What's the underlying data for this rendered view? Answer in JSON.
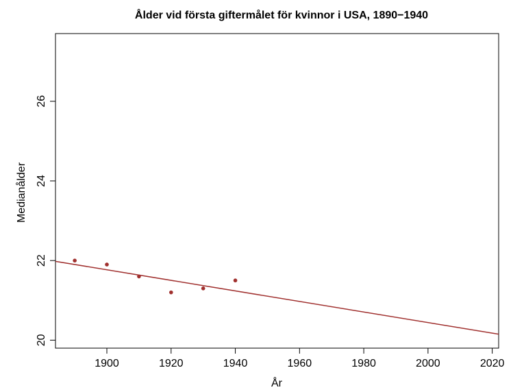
{
  "chart_data": {
    "type": "scatter",
    "title": "Ålder vid första giftermålet för kvinnor i USA, 1890−1940",
    "xlabel": "År",
    "ylabel": "Medianålder",
    "xlim": [
      1884,
      2022
    ],
    "ylim": [
      19.8,
      27.7
    ],
    "x_ticks": [
      1900,
      1920,
      1940,
      1960,
      1980,
      2000,
      2020
    ],
    "y_ticks": [
      20,
      22,
      24,
      26
    ],
    "x_tick_labels": [
      "1900",
      "1920",
      "1940",
      "1960",
      "1980",
      "2000",
      "2020"
    ],
    "y_tick_labels": [
      "20",
      "22",
      "24",
      "26"
    ],
    "points": [
      {
        "x": 1890,
        "y": 22.0
      },
      {
        "x": 1900,
        "y": 21.9
      },
      {
        "x": 1910,
        "y": 21.6
      },
      {
        "x": 1920,
        "y": 21.2
      },
      {
        "x": 1930,
        "y": 21.3
      },
      {
        "x": 1940,
        "y": 21.5
      }
    ],
    "trend_line": {
      "x": [
        1884,
        2022
      ],
      "y": [
        21.98,
        20.15
      ]
    },
    "grid": false,
    "colors": {
      "points": "#a0302e",
      "line": "#a0302e",
      "frame": "#000000"
    }
  }
}
